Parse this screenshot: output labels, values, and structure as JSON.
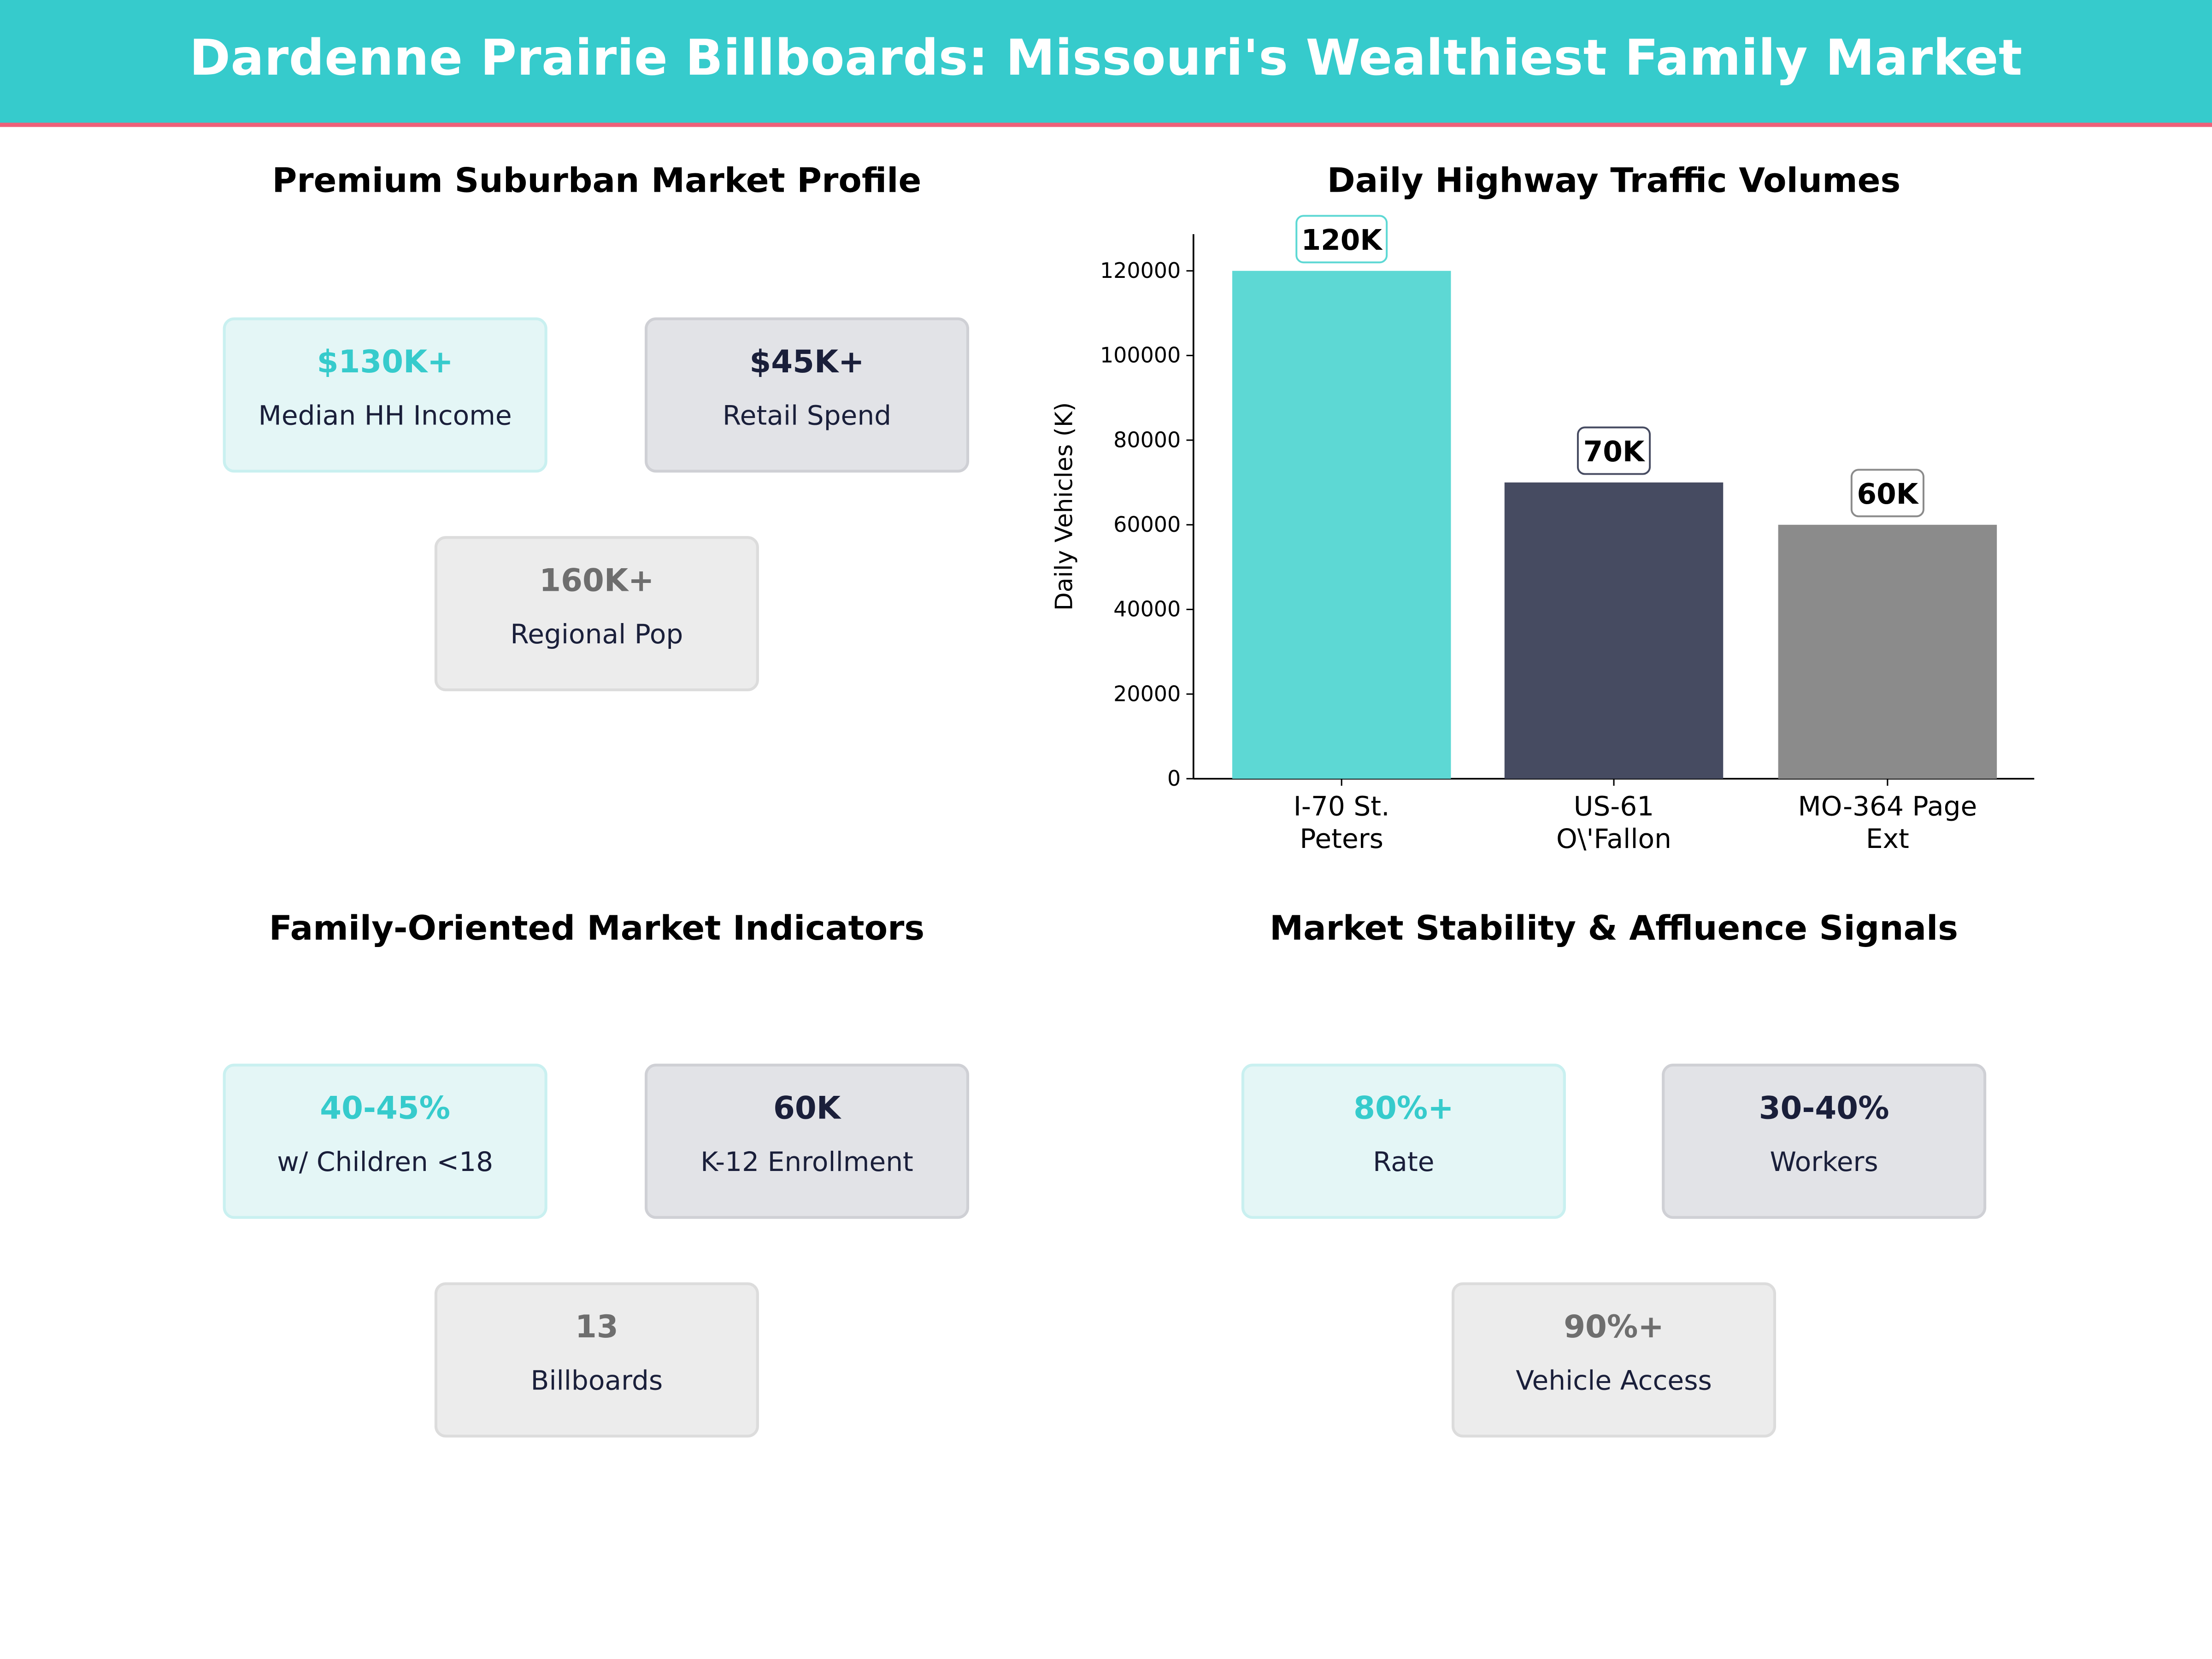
{
  "header": {
    "title": "Dardenne Prairie Billboards: Missouri's Wealthiest Family Market",
    "background_color": "#36cbcc",
    "accent_stripe_color": "#ef6079"
  },
  "colors": {
    "teal": "#36cbcc",
    "navy": "#1a1f3a",
    "gray": "#6e6e6e"
  },
  "panels": {
    "market_profile": {
      "title": "Premium Suburban Market Profile",
      "cards": [
        {
          "value": "$130K+",
          "label": "Median HH Income",
          "style": "teal"
        },
        {
          "value": "$45K+",
          "label": "Retail Spend",
          "style": "navy"
        },
        {
          "value": "160K+",
          "label": "Regional Pop",
          "style": "gray"
        }
      ]
    },
    "traffic": {
      "title": "Daily Highway Traffic Volumes"
    },
    "family": {
      "title": "Family-Oriented Market Indicators",
      "cards": [
        {
          "value": "40-45%",
          "label": "w/ Children <18",
          "style": "teal"
        },
        {
          "value": "60K",
          "label": "K-12 Enrollment",
          "style": "navy"
        },
        {
          "value": "13",
          "label": "Billboards",
          "style": "gray"
        }
      ]
    },
    "stability": {
      "title": "Market Stability & Affluence Signals",
      "cards": [
        {
          "value": "80%+",
          "label": "Rate",
          "style": "teal"
        },
        {
          "value": "30-40%",
          "label": "Workers",
          "style": "navy"
        },
        {
          "value": "90%+",
          "label": "Vehicle Access",
          "style": "gray"
        }
      ]
    }
  },
  "chart_data": {
    "type": "bar",
    "title": "Daily Highway Traffic Volumes",
    "categories": [
      "I-70 St.\nPeters",
      "US-61\nO\\'Fallon",
      "MO-364 Page\nExt"
    ],
    "category_lines": [
      [
        "I-70 St.",
        "Peters"
      ],
      [
        "US-61",
        "O\\'Fallon"
      ],
      [
        "MO-364 Page",
        "Ext"
      ]
    ],
    "values": [
      120000,
      70000,
      60000
    ],
    "data_labels": [
      "120K",
      "70K",
      "60K"
    ],
    "bar_colors": [
      "#5dd8d4",
      "#464b61",
      "#8b8b8b"
    ],
    "label_box_edge_colors": [
      "#5dd8d4",
      "#464b61",
      "#8b8b8b"
    ],
    "xlabel": "",
    "ylabel": "Daily Vehicles (K)",
    "ylim": [
      0,
      129000
    ],
    "yticks": [
      0,
      20000,
      40000,
      60000,
      80000,
      100000,
      120000
    ],
    "grid": false,
    "legend": null
  }
}
